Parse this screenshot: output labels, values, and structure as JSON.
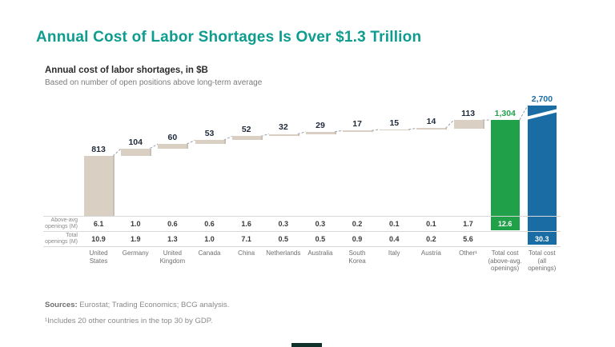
{
  "page": {
    "title": "Annual Cost of Labor Shortages Is Over $1.3 Trillion",
    "subtitle": "Annual cost of labor shortages, in $B",
    "subtitle2": "Based on number of open positions above long-term average",
    "sources_label": "Sources:",
    "sources_text": " Eurostat; Trading Economics; BCG analysis.",
    "footnote": "¹Includes 20 other countries in the top 30 by GDP."
  },
  "chart_data": {
    "type": "bar",
    "subtype": "waterfall",
    "title": "Annual cost of labor shortages, in $B",
    "note": "Based on number of open positions above long-term average",
    "categories": [
      "United States",
      "Germany",
      "United Kingdom",
      "Canada",
      "China",
      "Netherlands",
      "Australia",
      "South Korea",
      "Italy",
      "Austria",
      "Other¹",
      "Total cost (above-avg. openings)",
      "Total cost (all openings)"
    ],
    "values": [
      813,
      104,
      60,
      53,
      52,
      32,
      29,
      17,
      15,
      14,
      113,
      1304,
      2700
    ],
    "value_labels": [
      "813",
      "104",
      "60",
      "53",
      "52",
      "32",
      "29",
      "17",
      "15",
      "14",
      "113",
      "1,304",
      "2,700"
    ],
    "bar_roles": [
      "step",
      "step",
      "step",
      "step",
      "step",
      "step",
      "step",
      "step",
      "step",
      "step",
      "step",
      "total-green",
      "total-blue"
    ],
    "axis_break_on_last_bar": true,
    "legend": "none",
    "colors": {
      "step_bar": "#d9cfc2",
      "total_green": "#21a04a",
      "total_blue": "#1a6ca4",
      "title_teal": "#0e9c8f",
      "connector": "#9aa0a6"
    },
    "table_rows": [
      {
        "label_line1": "Above-avg",
        "label_line2": "openings (M)",
        "values": [
          "6.1",
          "1.0",
          "0.6",
          "0.6",
          "1.6",
          "0.3",
          "0.3",
          "0.2",
          "0.1",
          "0.1",
          "1.7",
          "12.6",
          ""
        ]
      },
      {
        "label_line1": "Total",
        "label_line2": "openings (M)",
        "values": [
          "10.9",
          "1.9",
          "1.3",
          "1.0",
          "7.1",
          "0.5",
          "0.5",
          "0.9",
          "0.4",
          "0.2",
          "5.6",
          "",
          "30.3"
        ]
      }
    ]
  }
}
